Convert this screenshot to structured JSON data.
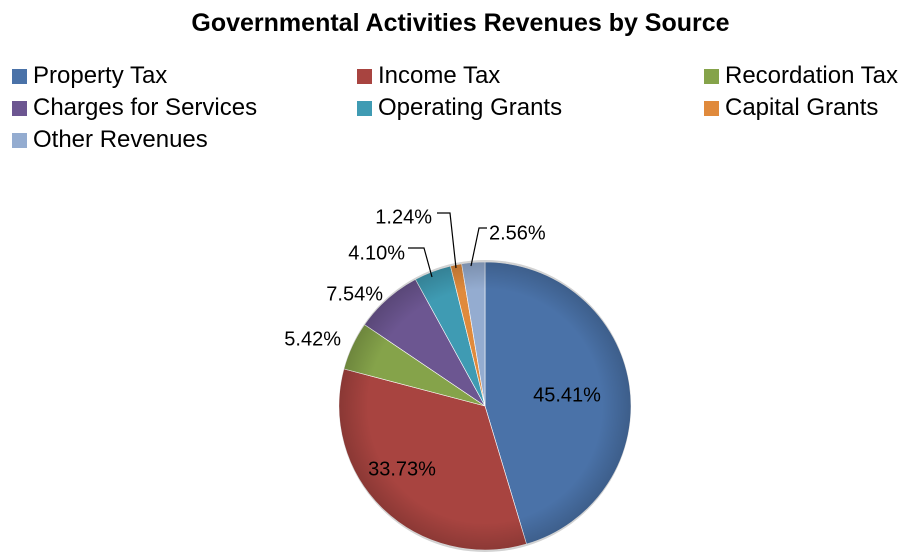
{
  "chart_data": {
    "type": "pie",
    "title": "Governmental Activities Revenues by Source",
    "legend_position": "top",
    "categories": [
      "Property Tax",
      "Income Tax",
      "Recordation Tax",
      "Charges for Services",
      "Operating Grants",
      "Capital Grants",
      "Other Revenues"
    ],
    "values": [
      45.41,
      33.73,
      5.42,
      7.54,
      4.1,
      1.24,
      2.56
    ],
    "data_labels": [
      "45.41%",
      "33.73%",
      "5.42%",
      "7.54%",
      "4.10%",
      "1.24%",
      "2.56%"
    ],
    "colors": [
      "#4a72a8",
      "#a84440",
      "#85a34a",
      "#6c5691",
      "#3f9bb3",
      "#e08a3c",
      "#94acd0"
    ]
  }
}
